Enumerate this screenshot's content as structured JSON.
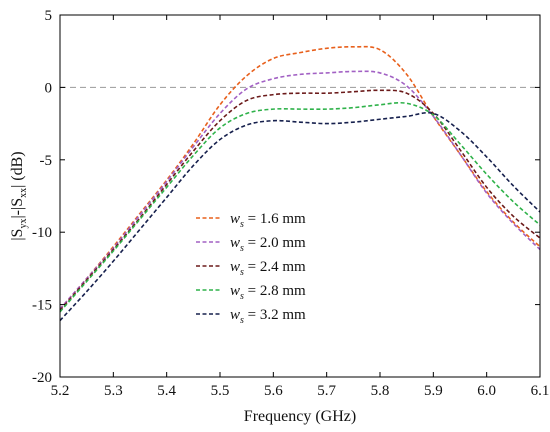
{
  "chart_data": {
    "type": "line",
    "xlabel": "Frequency (GHz)",
    "ylabel": {
      "part1": "|S",
      "sub1": "yx",
      "part2": "|-|S",
      "sub2": "xx",
      "part3": "|  (dB)"
    },
    "xlim": [
      5.2,
      6.1
    ],
    "ylim": [
      -20,
      5
    ],
    "xticks": [
      "5.2",
      "5.3",
      "5.4",
      "5.5",
      "5.6",
      "5.7",
      "5.8",
      "5.9",
      "6.0",
      "6.1"
    ],
    "yticks": [
      "5",
      "0",
      "-5",
      "-10",
      "-15",
      "-20"
    ],
    "grid": false,
    "reference_line": {
      "y": 0,
      "style": "dashed",
      "color": "#9a9a9a"
    },
    "legend_position": "center-left",
    "x": [
      5.2,
      5.25,
      5.3,
      5.35,
      5.4,
      5.45,
      5.5,
      5.55,
      5.6,
      5.65,
      5.7,
      5.75,
      5.8,
      5.85,
      5.9,
      5.95,
      6.0,
      6.05,
      6.1
    ],
    "series": [
      {
        "name": "w",
        "name_sub": "s",
        "name_rest": " = 1.6 mm",
        "color": "#e8601c",
        "values": [
          -15.3,
          -13.2,
          -11.0,
          -8.7,
          -6.4,
          -3.9,
          -1.2,
          0.8,
          2.0,
          2.4,
          2.7,
          2.8,
          2.6,
          0.9,
          -2.0,
          -4.6,
          -7.2,
          -9.3,
          -11.0
        ]
      },
      {
        "name": "w",
        "name_sub": "s",
        "name_rest": " = 2.0 mm",
        "color": "#a261c4",
        "values": [
          -15.3,
          -13.2,
          -11.1,
          -8.8,
          -6.5,
          -4.1,
          -1.8,
          -0.1,
          0.6,
          0.9,
          1.0,
          1.1,
          1.0,
          0.1,
          -2.0,
          -4.6,
          -7.3,
          -9.4,
          -11.2
        ]
      },
      {
        "name": "w",
        "name_sub": "s",
        "name_rest": " = 2.4 mm",
        "color": "#6b1a1a",
        "values": [
          -15.4,
          -13.3,
          -11.2,
          -9.0,
          -6.7,
          -4.4,
          -2.3,
          -0.9,
          -0.5,
          -0.4,
          -0.4,
          -0.3,
          -0.2,
          -0.4,
          -1.8,
          -4.3,
          -6.9,
          -8.9,
          -10.4
        ]
      },
      {
        "name": "w",
        "name_sub": "s",
        "name_rest": " = 2.8 mm",
        "color": "#2fb24a",
        "values": [
          -15.5,
          -13.4,
          -11.3,
          -9.1,
          -6.9,
          -4.7,
          -2.8,
          -1.8,
          -1.5,
          -1.5,
          -1.5,
          -1.4,
          -1.2,
          -1.1,
          -1.9,
          -3.9,
          -6.0,
          -7.9,
          -9.5
        ]
      },
      {
        "name": "w",
        "name_sub": "s",
        "name_rest": " = 3.2 mm",
        "color": "#16204d",
        "values": [
          -16.1,
          -14.1,
          -12.0,
          -9.8,
          -7.6,
          -5.4,
          -3.6,
          -2.6,
          -2.3,
          -2.4,
          -2.5,
          -2.4,
          -2.2,
          -2.0,
          -1.8,
          -3.0,
          -4.8,
          -6.8,
          -8.6
        ]
      }
    ]
  }
}
